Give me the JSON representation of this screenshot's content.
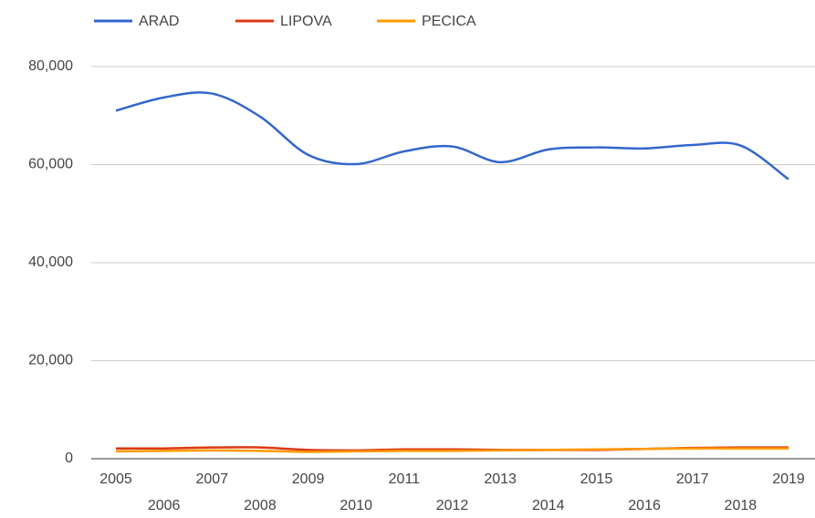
{
  "chart_data": {
    "type": "line",
    "categories": [
      "2005",
      "2006",
      "2007",
      "2008",
      "2009",
      "2010",
      "2011",
      "2012",
      "2013",
      "2014",
      "2015",
      "2016",
      "2017",
      "2018",
      "2019"
    ],
    "series": [
      {
        "name": "ARAD",
        "color": "#3366cc",
        "values": [
          71000,
          73700,
          74500,
          69800,
          62000,
          60100,
          62700,
          63700,
          60500,
          63100,
          63500,
          63300,
          64000,
          63900,
          57000
        ]
      },
      {
        "name": "LIPOVA",
        "color": "#dc3912",
        "values": [
          2100,
          2100,
          2300,
          2300,
          1800,
          1700,
          1900,
          1900,
          1800,
          1800,
          1800,
          2000,
          2200,
          2300,
          2300
        ]
      },
      {
        "name": "PECICA",
        "color": "#ff9900",
        "values": [
          1500,
          1600,
          1700,
          1600,
          1400,
          1500,
          1600,
          1600,
          1700,
          1800,
          1900,
          2000,
          2100,
          2100,
          2100
        ]
      }
    ],
    "ylim": [
      0,
      80000
    ],
    "yticks": [
      {
        "value": 0,
        "label": "0"
      },
      {
        "value": 20000,
        "label": "20,000"
      },
      {
        "value": 40000,
        "label": "40,000"
      },
      {
        "value": 60000,
        "label": "60,000"
      },
      {
        "value": 80000,
        "label": "80,000"
      }
    ],
    "grid": true,
    "legend": "top"
  }
}
